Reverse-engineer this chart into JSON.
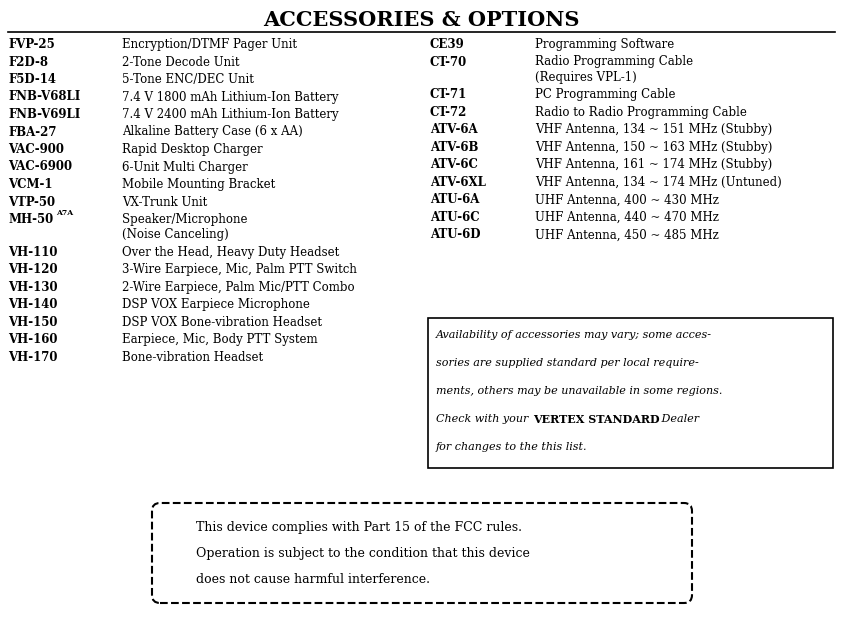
{
  "title_display": "ACCESSORIES & OPTIONS",
  "bg_color": "#ffffff",
  "text_color": "#000000",
  "left_items": [
    [
      "FVP-25",
      "Encryption/DTMF Pager Unit"
    ],
    [
      "F2D-8",
      "2-Tone Decode Unit"
    ],
    [
      "F5D-14",
      "5-Tone ENC/DEC Unit"
    ],
    [
      "FNB-V68LI",
      "7.4 V 1800 mAh Lithium-Ion Battery"
    ],
    [
      "FNB-V69LI",
      "7.4 V 2400 mAh Lithium-Ion Battery"
    ],
    [
      "FBA-27",
      "Alkaline Battery Case (6 x AA)"
    ],
    [
      "VAC-900",
      "Rapid Desktop Charger"
    ],
    [
      "VAC-6900",
      "6-Unit Multi Charger"
    ],
    [
      "VCM-1",
      "Mobile Mounting Bracket"
    ],
    [
      "VTP-50",
      "VX-Trunk Unit"
    ],
    [
      "MH-50|A7A",
      "Speaker/Microphone\n(Noise Canceling)"
    ],
    [
      "VH-110",
      "Over the Head, Heavy Duty Headset"
    ],
    [
      "VH-120",
      "3-Wire Earpiece, Mic, Palm PTT Switch"
    ],
    [
      "VH-130",
      "2-Wire Earpiece, Palm Mic/PTT Combo"
    ],
    [
      "VH-140",
      "DSP VOX Earpiece Microphone"
    ],
    [
      "VH-150",
      "DSP VOX Bone-vibration Headset"
    ],
    [
      "VH-160",
      "Earpiece, Mic, Body PTT System"
    ],
    [
      "VH-170",
      "Bone-vibration Headset"
    ]
  ],
  "right_items": [
    [
      "CE39",
      "Programming Software"
    ],
    [
      "CT-70",
      "Radio Programming Cable\n(Requires VPL-1)"
    ],
    [
      "CT-71",
      "PC Programming Cable"
    ],
    [
      "CT-72",
      "Radio to Radio Programming Cable"
    ],
    [
      "ATV-6A",
      "VHF Antenna, 134 ~ 151 MHz (Stubby)"
    ],
    [
      "ATV-6B",
      "VHF Antenna, 150 ~ 163 MHz (Stubby)"
    ],
    [
      "ATV-6C",
      "VHF Antenna, 161 ~ 174 MHz (Stubby)"
    ],
    [
      "ATV-6XL",
      "VHF Antenna, 134 ~ 174 MHz (Untuned)"
    ],
    [
      "ATU-6A",
      "UHF Antenna, 400 ~ 430 MHz"
    ],
    [
      "ATU-6C",
      "UHF Antenna, 440 ~ 470 MHz"
    ],
    [
      "ATU-6D",
      "UHF Antenna, 450 ~ 485 MHz"
    ]
  ],
  "fcc_line1": "This device complies with Part 15 of the FCC rules.",
  "fcc_line2": "Operation is subject to the condition that this device",
  "fcc_line3": "does not cause harmful interference."
}
